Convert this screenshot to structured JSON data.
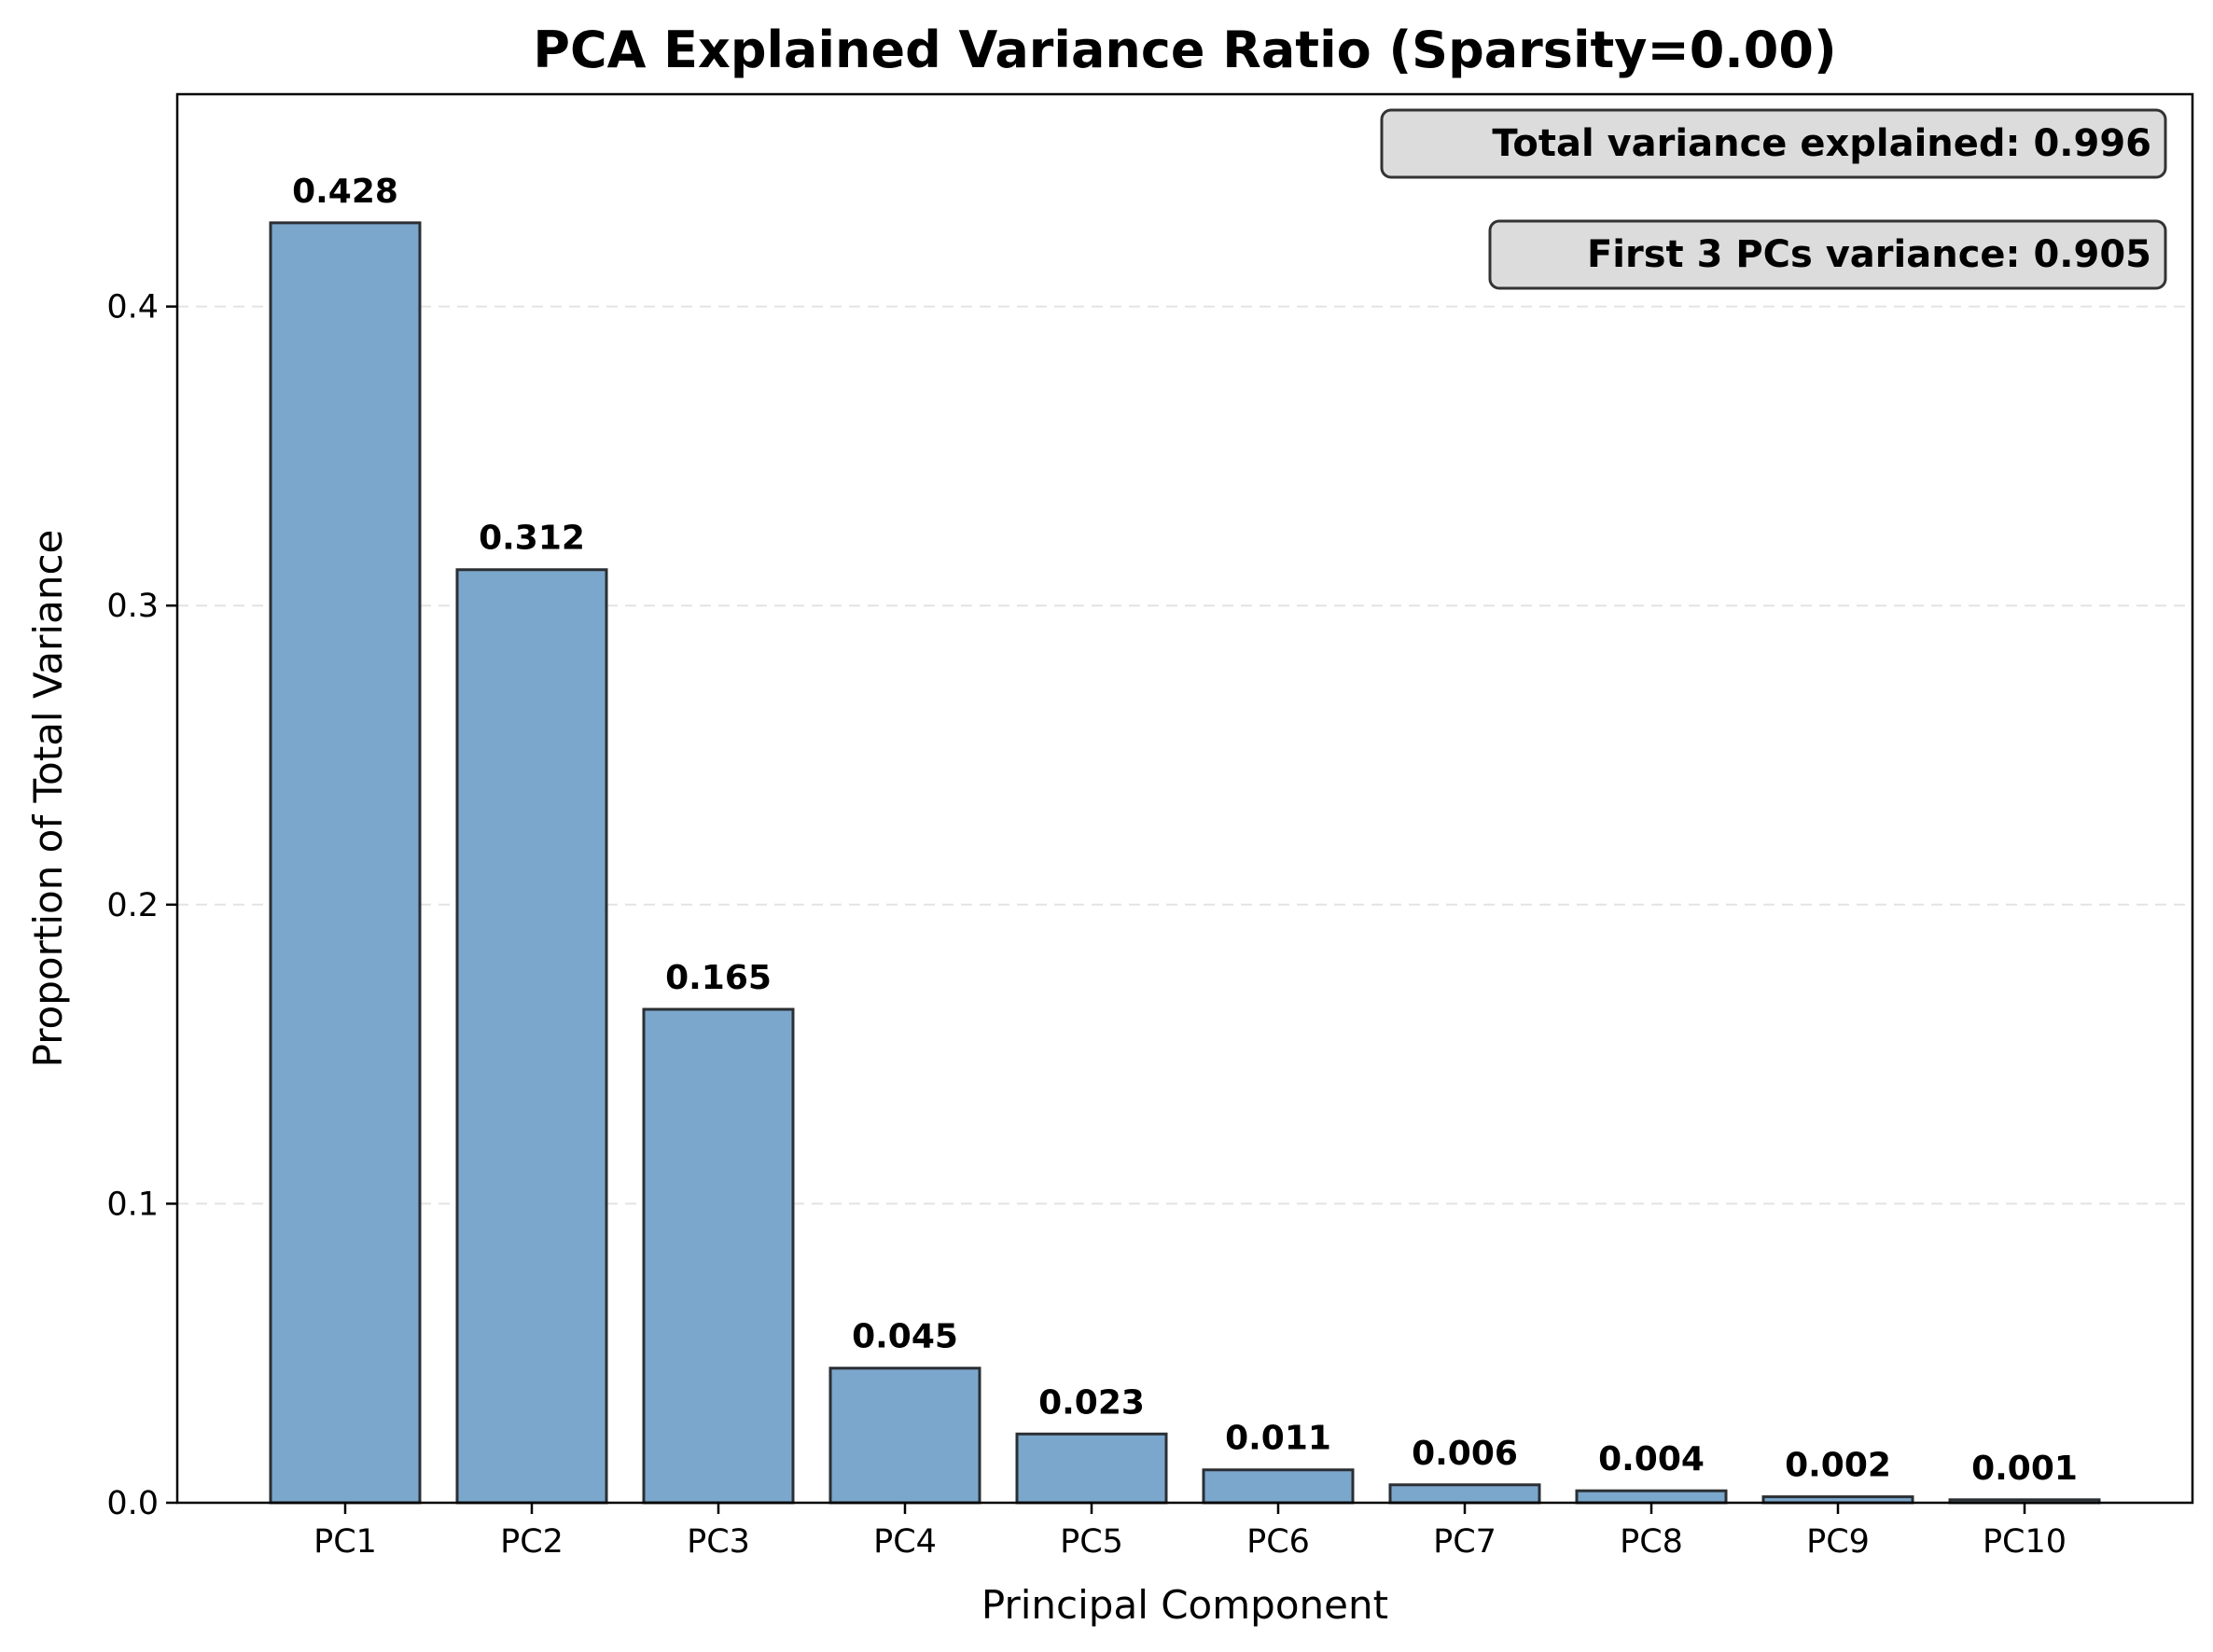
{
  "chart_data": {
    "type": "bar",
    "title": "PCA Explained Variance Ratio (Sparsity=0.00)",
    "xlabel": "Principal Component",
    "ylabel": "Proportion of Total Variance",
    "categories": [
      "PC1",
      "PC2",
      "PC3",
      "PC4",
      "PC5",
      "PC6",
      "PC7",
      "PC8",
      "PC9",
      "PC10"
    ],
    "values": [
      0.428,
      0.312,
      0.165,
      0.045,
      0.023,
      0.011,
      0.006,
      0.004,
      0.002,
      0.001
    ],
    "value_labels": [
      "0.428",
      "0.312",
      "0.165",
      "0.045",
      "0.023",
      "0.011",
      "0.006",
      "0.004",
      "0.002",
      "0.001"
    ],
    "yticks": [
      0.0,
      0.1,
      0.2,
      0.3,
      0.4
    ],
    "ytick_labels": [
      "0.0",
      "0.1",
      "0.2",
      "0.3",
      "0.4"
    ],
    "ylim": [
      0,
      0.471
    ],
    "grid": "y, dashed",
    "annotations": [
      "Total variance explained: 0.996",
      "First 3 PCs variance: 0.905"
    ],
    "colors": {
      "bar_fill": "#7ba7cc",
      "bar_edge": "#2b2f33",
      "grid": "#e3e3e3",
      "annotation_fill": "#dcdcdc",
      "annotation_edge": "#333333"
    }
  }
}
